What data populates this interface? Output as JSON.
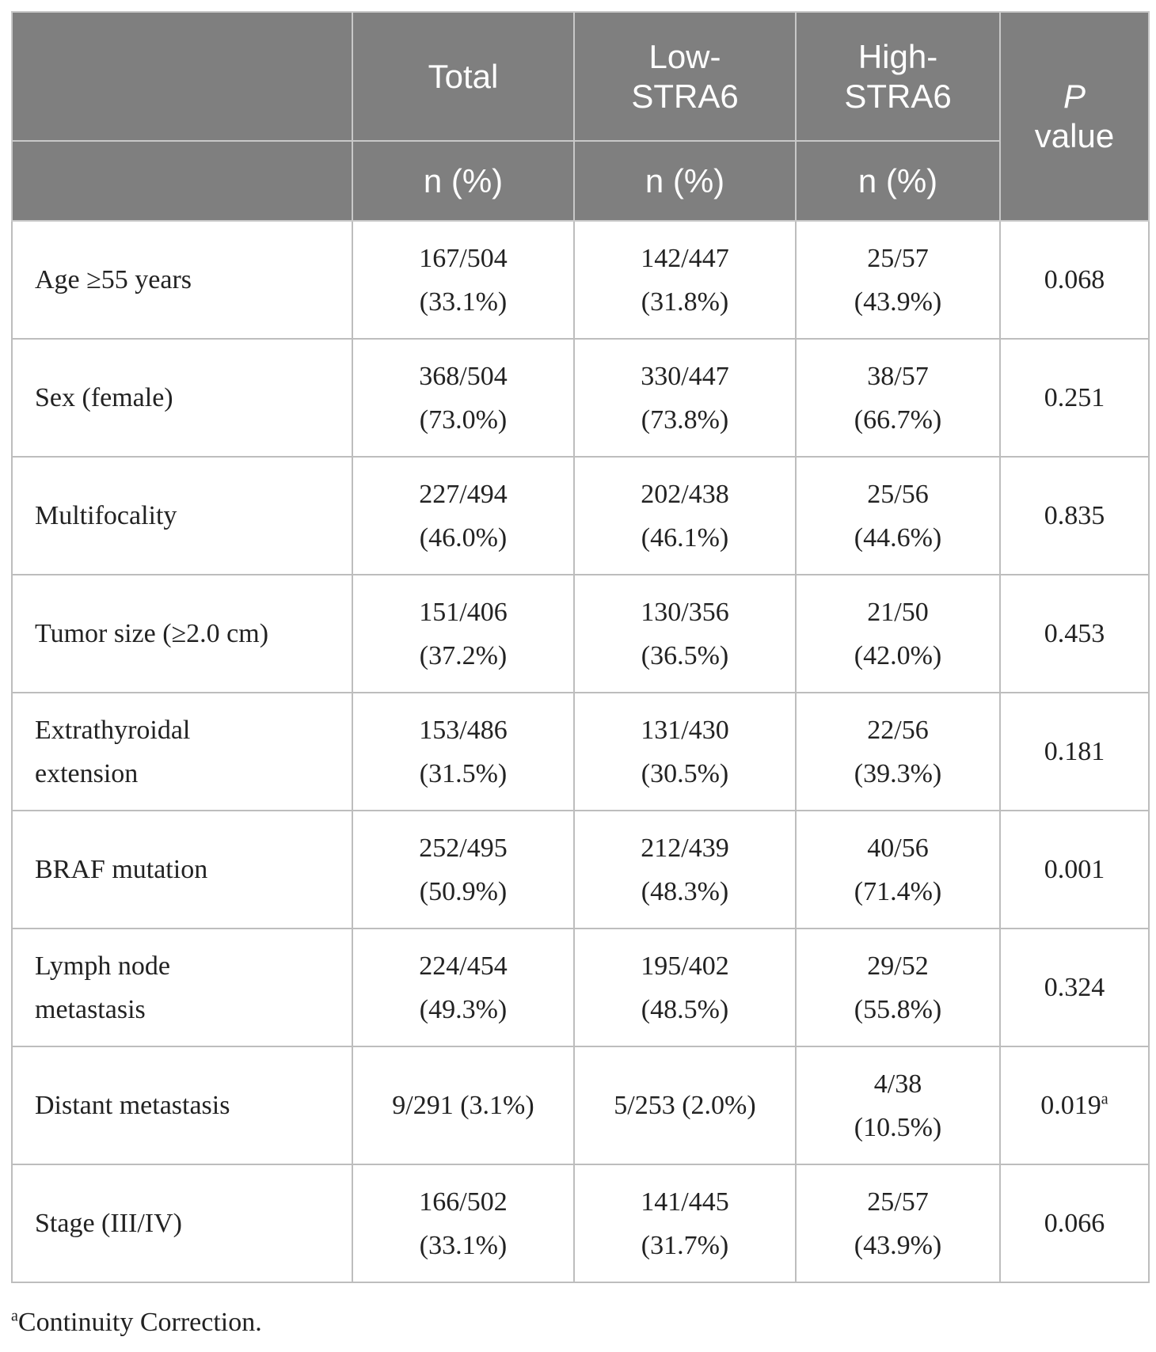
{
  "header": {
    "col_total": "Total",
    "col_low_line1": "Low-",
    "col_low_line2": "STRA6",
    "col_high_line1": "High-",
    "col_high_line2": "STRA6",
    "col_p_line1": "P",
    "col_p_line2": "value",
    "sub_total": "n (%)",
    "sub_low": "n (%)",
    "sub_high": "n (%)"
  },
  "rows": [
    {
      "label_line1": "Age ≥55 years",
      "label_line2": "",
      "total_1": "167/504",
      "total_2": "(33.1%)",
      "low_1": "142/447",
      "low_2": "(31.8%)",
      "high_1": "25/57",
      "high_2": "(43.9%)",
      "p": "0.068",
      "p_sup": ""
    },
    {
      "label_line1": "Sex (female)",
      "label_line2": "",
      "total_1": "368/504",
      "total_2": "(73.0%)",
      "low_1": "330/447",
      "low_2": "(73.8%)",
      "high_1": "38/57",
      "high_2": "(66.7%)",
      "p": "0.251",
      "p_sup": ""
    },
    {
      "label_line1": "Multifocality",
      "label_line2": "",
      "total_1": "227/494",
      "total_2": "(46.0%)",
      "low_1": "202/438",
      "low_2": "(46.1%)",
      "high_1": "25/56",
      "high_2": "(44.6%)",
      "p": "0.835",
      "p_sup": ""
    },
    {
      "label_line1": "Tumor size (≥2.0 cm)",
      "label_line2": "",
      "total_1": "151/406",
      "total_2": "(37.2%)",
      "low_1": "130/356",
      "low_2": "(36.5%)",
      "high_1": "21/50",
      "high_2": "(42.0%)",
      "p": "0.453",
      "p_sup": ""
    },
    {
      "label_line1": "Extrathyroidal",
      "label_line2": "extension",
      "total_1": "153/486",
      "total_2": "(31.5%)",
      "low_1": "131/430",
      "low_2": "(30.5%)",
      "high_1": "22/56",
      "high_2": "(39.3%)",
      "p": "0.181",
      "p_sup": ""
    },
    {
      "label_line1": "BRAF mutation",
      "label_line2": "",
      "total_1": "252/495",
      "total_2": "(50.9%)",
      "low_1": "212/439",
      "low_2": "(48.3%)",
      "high_1": "40/56",
      "high_2": "(71.4%)",
      "p": "0.001",
      "p_sup": ""
    },
    {
      "label_line1": "Lymph node",
      "label_line2": "metastasis",
      "total_1": "224/454",
      "total_2": "(49.3%)",
      "low_1": "195/402",
      "low_2": "(48.5%)",
      "high_1": "29/52",
      "high_2": "(55.8%)",
      "p": "0.324",
      "p_sup": ""
    },
    {
      "label_line1": "Distant metastasis",
      "label_line2": "",
      "total_1": "9/291 (3.1%)",
      "total_2": "",
      "low_1": "5/253 (2.0%)",
      "low_2": "",
      "high_1": "4/38",
      "high_2": "(10.5%)",
      "p": "0.019",
      "p_sup": "a"
    },
    {
      "label_line1": "Stage (III/IV)",
      "label_line2": "",
      "total_1": "166/502",
      "total_2": "(33.1%)",
      "low_1": "141/445",
      "low_2": "(31.7%)",
      "high_1": "25/57",
      "high_2": "(43.9%)",
      "p": "0.066",
      "p_sup": ""
    }
  ],
  "footnote": {
    "marker": "a",
    "text": "Continuity Correction."
  }
}
